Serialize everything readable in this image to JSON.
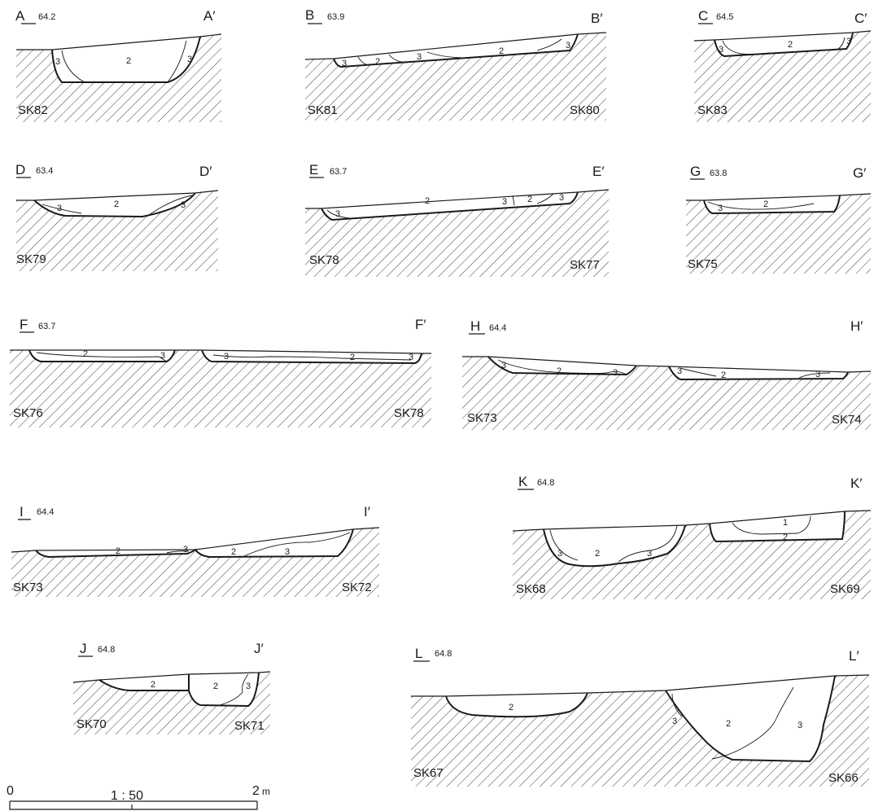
{
  "scale": {
    "zero": "0",
    "ratio": "1 : 50",
    "end": "2",
    "unit": "m"
  },
  "sections": [
    {
      "id": "A",
      "start": "A",
      "end": "A′",
      "elevation": "64.2",
      "features": [
        "SK82"
      ],
      "layers": [
        "3",
        "2",
        "3"
      ]
    },
    {
      "id": "B",
      "start": "B",
      "end": "B′",
      "elevation": "63.9",
      "features": [
        "SK81",
        "SK80"
      ],
      "layers": [
        "3",
        "2",
        "3",
        "2",
        "3"
      ]
    },
    {
      "id": "C",
      "start": "C",
      "end": "C′",
      "elevation": "64.5",
      "features": [
        "SK83"
      ],
      "layers": [
        "3",
        "2",
        "3"
      ]
    },
    {
      "id": "D",
      "start": "D",
      "end": "D′",
      "elevation": "63.4",
      "features": [
        "SK79"
      ],
      "layers": [
        "3",
        "2",
        "3"
      ]
    },
    {
      "id": "E",
      "start": "E",
      "end": "E′",
      "elevation": "63.7",
      "features": [
        "SK78",
        "SK77"
      ],
      "layers": [
        "3",
        "2",
        "3",
        "2",
        "3"
      ]
    },
    {
      "id": "G",
      "start": "G",
      "end": "G′",
      "elevation": "63.8",
      "features": [
        "SK75"
      ],
      "layers": [
        "3",
        "2"
      ]
    },
    {
      "id": "F",
      "start": "F",
      "end": "F′",
      "elevation": "63.7",
      "features": [
        "SK76",
        "SK78"
      ],
      "layers": [
        "2",
        "3",
        "3",
        "2",
        "3"
      ]
    },
    {
      "id": "H",
      "start": "H",
      "end": "H′",
      "elevation": "64.4",
      "features": [
        "SK73",
        "SK74"
      ],
      "layers": [
        "3",
        "2",
        "3",
        "3",
        "2",
        "3"
      ]
    },
    {
      "id": "I",
      "start": "I",
      "end": "I′",
      "elevation": "64.4",
      "features": [
        "SK73",
        "SK72"
      ],
      "layers": [
        "2",
        "3",
        "2",
        "3"
      ]
    },
    {
      "id": "K",
      "start": "K",
      "end": "K′",
      "elevation": "64.8",
      "features": [
        "SK68",
        "SK69"
      ],
      "layers": [
        "3",
        "2",
        "3",
        "1",
        "2"
      ]
    },
    {
      "id": "J",
      "start": "J",
      "end": "J′",
      "elevation": "64.8",
      "features": [
        "SK70",
        "SK71"
      ],
      "layers": [
        "2",
        "2",
        "3"
      ]
    },
    {
      "id": "L",
      "start": "L",
      "end": "L′",
      "elevation": "64.8",
      "features": [
        "SK67",
        "SK66"
      ],
      "layers": [
        "2",
        "3",
        "2",
        "3"
      ]
    }
  ]
}
